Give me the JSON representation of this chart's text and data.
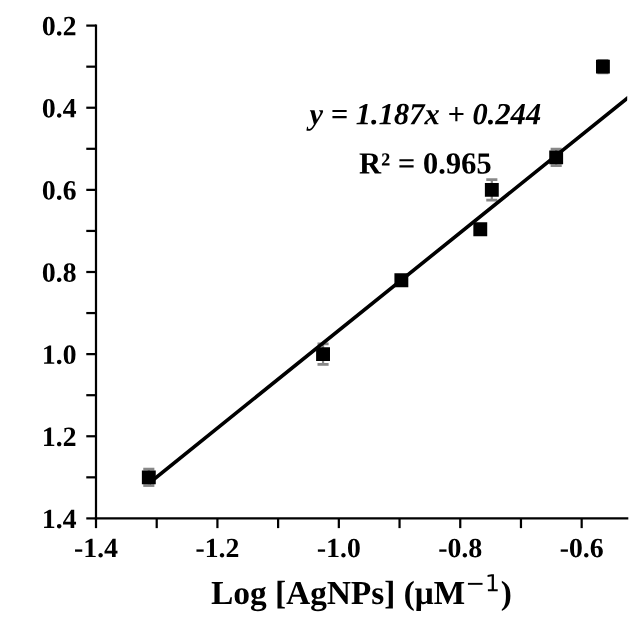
{
  "chart_data": {
    "type": "scatter",
    "xlabel": "Log [AgNPs] (μM$^{−1}$)",
    "annotations": [
      "y = 1.187x + 0.244",
      "R² = 0.965"
    ],
    "series": [
      {
        "color": "#000000",
        "marker": "square",
        "x": [
          -1.313,
          -1.026,
          -0.897,
          -0.767,
          -0.748,
          -0.642,
          -0.565
        ],
        "values": [
          1.3,
          1.0,
          0.82,
          0.696,
          0.6,
          0.521,
          0.3
        ],
        "errors": [
          0.02,
          0.025,
          0.01,
          0.01,
          0.025,
          0.02,
          0.015
        ]
      },
      {
        "type": "line",
        "color": "#000000",
        "x": [
          -1.31,
          -0.525
        ],
        "values": [
          1.311,
          0.377
        ]
      }
    ],
    "xlim": [
      -1.4,
      -0.525
    ],
    "ylim": [
      1.4,
      0.2
    ],
    "xticks": [
      -1.4,
      {
        "value": -1.3,
        "label": null
      },
      -1.2,
      {
        "value": -1.1,
        "label": null
      },
      {
        "value": -1.0,
        "label": "-1.0"
      },
      {
        "value": -0.9,
        "label": null
      },
      -0.8,
      {
        "value": -0.7,
        "label": null
      },
      -0.6
    ],
    "yticks": [
      0.2,
      {
        "value": 0.3,
        "label": null
      },
      0.4,
      {
        "value": 0.5,
        "label": null
      },
      0.6,
      {
        "value": 0.7,
        "label": null
      },
      0.8,
      {
        "value": 0.9,
        "label": null
      },
      {
        "value": 1.0,
        "label": "1.0"
      },
      {
        "value": 1.1,
        "label": null
      },
      1.2,
      {
        "value": 1.3,
        "label": null
      },
      1.4
    ],
    "grid": false,
    "legend": false
  }
}
